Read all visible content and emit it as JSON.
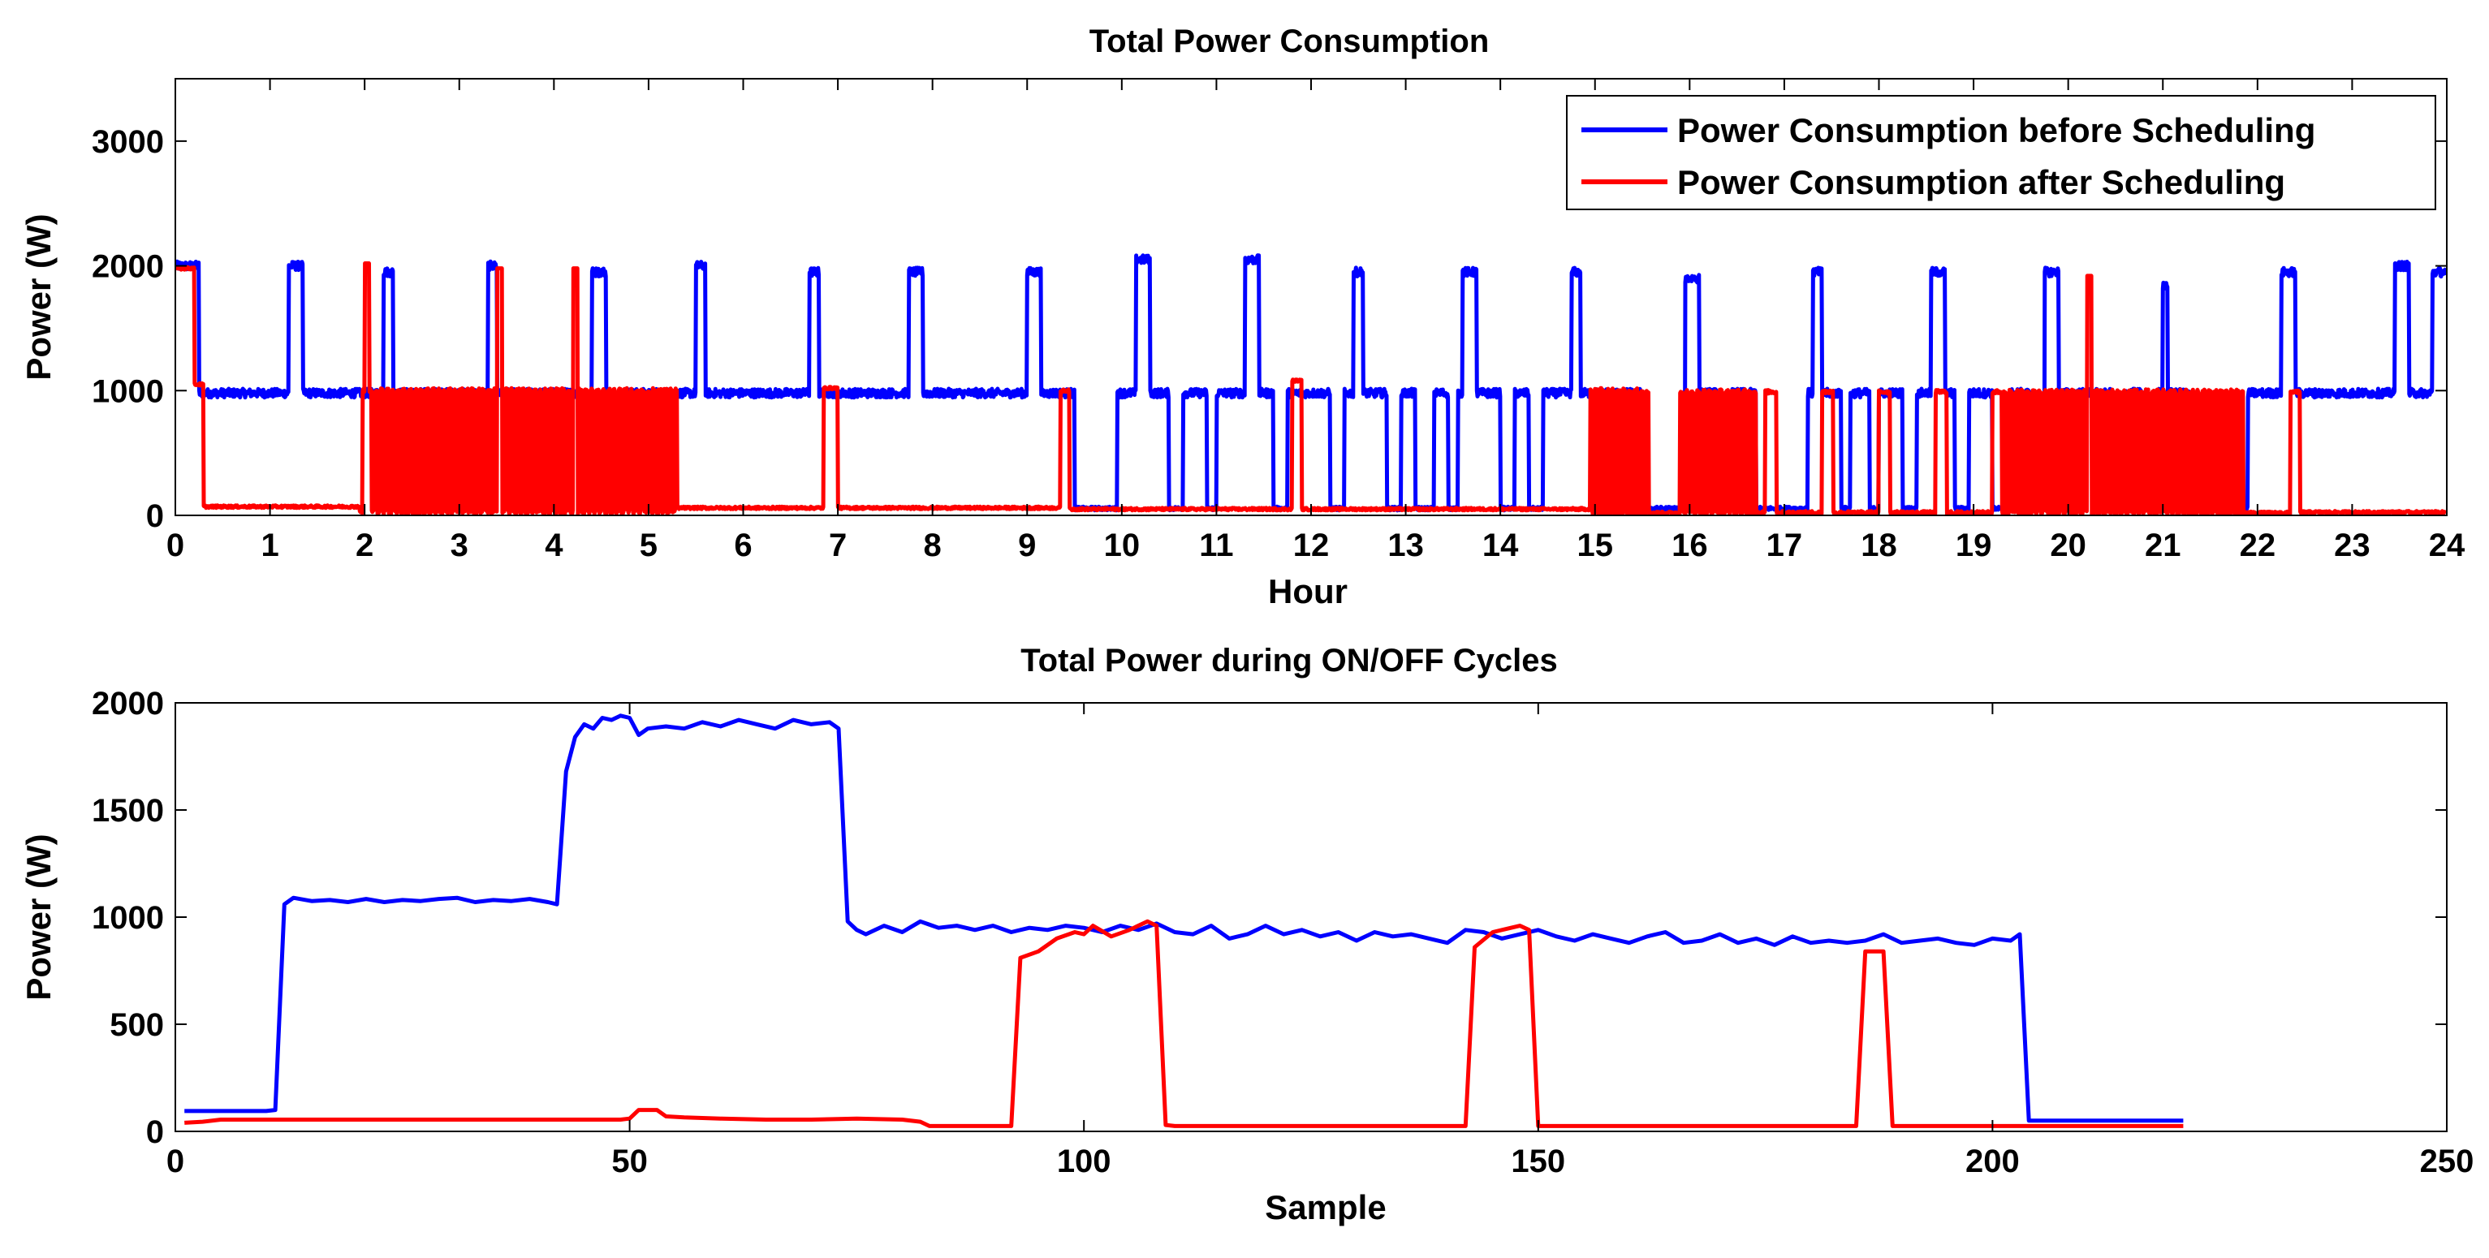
{
  "chart_data": [
    {
      "type": "line",
      "title": "Total Power Consumption",
      "xlabel": "Hour",
      "ylabel": "Power (W)",
      "xlim": [
        0,
        24
      ],
      "ylim": [
        0,
        3500
      ],
      "xticks": [
        0,
        1,
        2,
        3,
        4,
        5,
        6,
        7,
        8,
        9,
        10,
        11,
        12,
        13,
        14,
        15,
        16,
        17,
        18,
        19,
        20,
        21,
        22,
        23,
        24
      ],
      "yticks": [
        0,
        1000,
        2000,
        3000
      ],
      "grid": false,
      "legend_location": "top-right",
      "series": [
        {
          "name": "Power Consumption before Scheduling",
          "color": "#0000ff",
          "pulses": [
            [
              0.0,
              0.25,
              2000
            ],
            [
              1.2,
              1.35,
              2000
            ],
            [
              2.2,
              2.3,
              1950
            ],
            [
              3.3,
              3.4,
              2000
            ],
            [
              4.4,
              4.55,
              1950
            ],
            [
              5.5,
              5.6,
              2000
            ],
            [
              6.7,
              6.8,
              1950
            ],
            [
              7.75,
              7.9,
              1950
            ],
            [
              9.0,
              9.15,
              1950
            ],
            [
              10.15,
              10.3,
              2050
            ],
            [
              11.3,
              11.45,
              2050
            ],
            [
              12.45,
              12.55,
              1950
            ],
            [
              13.6,
              13.75,
              1950
            ],
            [
              14.75,
              14.85,
              1950
            ],
            [
              15.95,
              16.1,
              1900
            ],
            [
              17.3,
              17.4,
              1950
            ],
            [
              18.55,
              18.7,
              1950
            ],
            [
              19.75,
              19.9,
              1950
            ],
            [
              21.0,
              21.05,
              1850
            ],
            [
              22.25,
              22.4,
              1950
            ],
            [
              23.45,
              23.6,
              2000
            ],
            [
              23.85,
              24.0,
              1950
            ]
          ],
          "drops": [
            [
              9.5,
              9.95
            ],
            [
              10.5,
              10.65
            ],
            [
              10.9,
              11.0
            ],
            [
              11.6,
              11.75
            ],
            [
              12.2,
              12.35
            ],
            [
              12.8,
              12.95
            ],
            [
              13.1,
              13.3
            ],
            [
              13.45,
              13.55
            ],
            [
              14.0,
              14.15
            ],
            [
              14.3,
              14.45
            ],
            [
              15.5,
              16.0
            ],
            [
              16.3,
              16.45
            ],
            [
              16.7,
              17.25
            ],
            [
              17.6,
              17.7
            ],
            [
              17.9,
              18.0
            ],
            [
              18.25,
              18.4
            ],
            [
              18.8,
              18.95
            ],
            [
              19.2,
              19.4
            ],
            [
              19.6,
              19.75
            ],
            [
              20.45,
              20.6
            ],
            [
              20.8,
              20.95
            ],
            [
              21.3,
              21.9
            ]
          ],
          "noise_amplitude": 35,
          "base_level": 980
        },
        {
          "name": "Power Consumption after Scheduling",
          "color": "#ff0000",
          "segments": [
            {
              "x0": 0.0,
              "x1": 0.2,
              "level": 1980
            },
            {
              "x0": 0.2,
              "x1": 0.3,
              "level": 1050
            },
            {
              "x0": 0.3,
              "x1": 1.95,
              "level": 70
            },
            {
              "x0": 1.95,
              "x1": 5.3,
              "level": "switching",
              "low": 30,
              "high": 1000
            },
            {
              "x0": 5.3,
              "x1": 6.85,
              "level": 60
            },
            {
              "x0": 6.85,
              "x1": 7.0,
              "level": 1020
            },
            {
              "x0": 7.0,
              "x1": 9.35,
              "level": 60
            },
            {
              "x0": 9.35,
              "x1": 9.45,
              "level": 1000
            },
            {
              "x0": 9.45,
              "x1": 11.8,
              "level": 50
            },
            {
              "x0": 11.8,
              "x1": 11.9,
              "level": 1080
            },
            {
              "x0": 11.9,
              "x1": 14.95,
              "level": 50
            },
            {
              "x0": 14.95,
              "x1": 15.6,
              "level": "switching",
              "low": 20,
              "high": 1000
            },
            {
              "x0": 15.6,
              "x1": 15.9,
              "level": 20
            },
            {
              "x0": 15.9,
              "x1": 16.7,
              "level": "switching",
              "low": 20,
              "high": 990
            },
            {
              "x0": 16.7,
              "x1": 19.3,
              "level": "sparse",
              "low": 20,
              "high": 990
            },
            {
              "x0": 19.3,
              "x1": 21.85,
              "level": "switching",
              "low": 20,
              "high": 990
            },
            {
              "x0": 21.85,
              "x1": 22.35,
              "level": 20
            },
            {
              "x0": 22.35,
              "x1": 22.45,
              "level": 990
            },
            {
              "x0": 22.45,
              "x1": 24.0,
              "level": 25
            }
          ],
          "spikes": [
            [
              2.0,
              2.05,
              2020
            ],
            [
              3.4,
              3.45,
              1980
            ],
            [
              4.2,
              4.25,
              1980
            ],
            [
              20.2,
              20.25,
              1920
            ]
          ]
        }
      ]
    },
    {
      "type": "line",
      "title": "Total Power during ON/OFF Cycles",
      "xlabel": "Sample",
      "ylabel": "Power (W)",
      "xlim": [
        0,
        250
      ],
      "ylim": [
        0,
        2000
      ],
      "xticks": [
        0,
        50,
        100,
        150,
        200,
        250
      ],
      "yticks": [
        0,
        500,
        1000,
        1500,
        2000
      ],
      "grid": false,
      "series": [
        {
          "name": "Power Consumption before Scheduling",
          "color": "#0000ff",
          "x": [
            1,
            10,
            11,
            12,
            13,
            15,
            17,
            19,
            21,
            23,
            25,
            27,
            29,
            31,
            33,
            35,
            37,
            39,
            41,
            42,
            43,
            44,
            45,
            46,
            47,
            48,
            49,
            50,
            51,
            52,
            54,
            56,
            58,
            60,
            62,
            64,
            66,
            68,
            70,
            72,
            73,
            74,
            75,
            76,
            78,
            80,
            82,
            84,
            86,
            88,
            90,
            92,
            94,
            96,
            98,
            100,
            102,
            104,
            106,
            108,
            110,
            112,
            114,
            116,
            118,
            120,
            122,
            124,
            126,
            128,
            130,
            132,
            134,
            136,
            138,
            140,
            142,
            144,
            146,
            148,
            150,
            152,
            154,
            156,
            158,
            160,
            162,
            164,
            166,
            168,
            170,
            172,
            174,
            176,
            178,
            180,
            182,
            184,
            186,
            188,
            190,
            192,
            194,
            196,
            198,
            200,
            202,
            203,
            204,
            221
          ],
          "values": [
            95,
            95,
            100,
            1060,
            1090,
            1075,
            1080,
            1070,
            1085,
            1070,
            1080,
            1075,
            1085,
            1090,
            1070,
            1080,
            1075,
            1085,
            1070,
            1060,
            1680,
            1840,
            1900,
            1880,
            1930,
            1920,
            1940,
            1930,
            1850,
            1880,
            1890,
            1880,
            1910,
            1890,
            1920,
            1900,
            1880,
            1920,
            1900,
            1910,
            1880,
            980,
            940,
            920,
            960,
            930,
            980,
            950,
            960,
            940,
            960,
            930,
            950,
            940,
            960,
            950,
            930,
            960,
            940,
            970,
            930,
            920,
            960,
            900,
            920,
            960,
            920,
            940,
            910,
            930,
            890,
            930,
            910,
            920,
            900,
            880,
            940,
            930,
            900,
            920,
            940,
            910,
            890,
            920,
            900,
            880,
            910,
            930,
            880,
            890,
            920,
            880,
            900,
            870,
            910,
            880,
            890,
            880,
            890,
            920,
            880,
            890,
            900,
            880,
            870,
            900,
            890,
            920,
            50,
            50
          ]
        },
        {
          "name": "Power Consumption after Scheduling",
          "color": "#ff0000",
          "x": [
            1,
            3,
            5,
            20,
            40,
            49,
            50,
            51,
            53,
            54,
            56,
            60,
            65,
            70,
            75,
            80,
            82,
            83,
            90,
            92,
            93,
            95,
            97,
            99,
            100,
            101,
            103,
            105,
            107,
            108,
            109,
            110,
            120,
            140,
            142,
            143,
            145,
            147,
            148,
            149,
            150,
            151,
            160,
            180,
            185,
            186,
            188,
            189,
            190,
            200,
            221
          ],
          "values": [
            40,
            45,
            55,
            55,
            55,
            55,
            60,
            100,
            100,
            70,
            65,
            60,
            55,
            55,
            60,
            55,
            45,
            25,
            25,
            25,
            810,
            840,
            900,
            930,
            920,
            960,
            910,
            940,
            980,
            960,
            30,
            25,
            25,
            25,
            25,
            860,
            930,
            950,
            960,
            940,
            25,
            25,
            25,
            25,
            25,
            840,
            840,
            25,
            25,
            25,
            25
          ]
        }
      ]
    }
  ]
}
